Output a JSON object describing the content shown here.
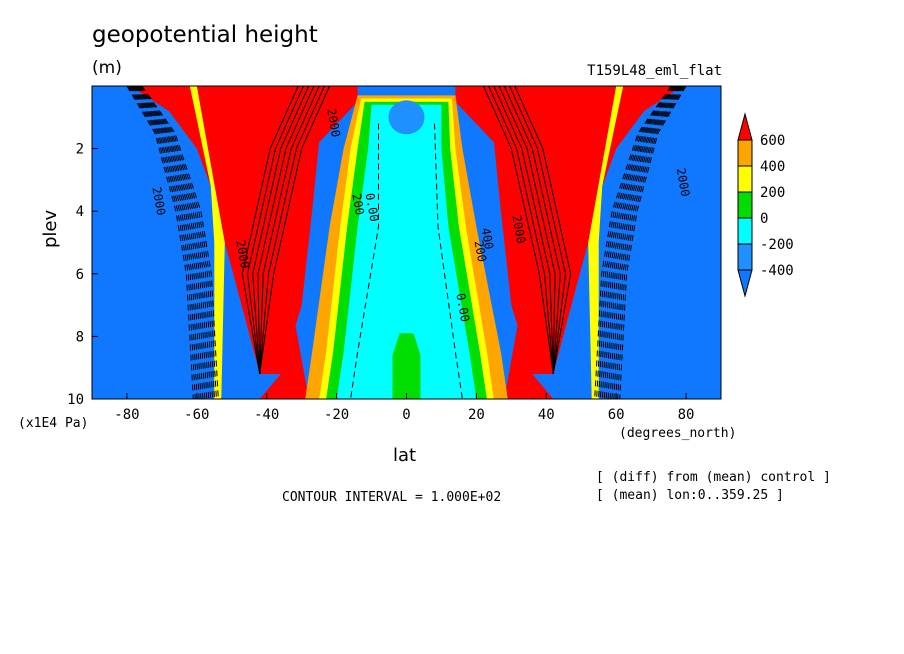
{
  "header": {
    "title": "geopotential height",
    "units": "(m)",
    "run_label": "T159L48_eml_flat"
  },
  "footer": {
    "contour_interval": "CONTOUR INTERVAL = 1.000E+02",
    "diff_note": "[ (diff) from (mean) control ]",
    "mean_note": "[ (mean) lon:0..359.25 ]"
  },
  "colors": {
    "level_lt_-400": "#0f78ff",
    "level_-400_-200": "#1e90ff",
    "level_-200_0": "#00ffff",
    "level_0_200": "#00dd00",
    "level_200_400": "#ffff00",
    "level_400_600": "#ffa500",
    "level_gt_600": "#ff0000"
  },
  "chart_data": {
    "type": "heatmap",
    "title": "geopotential height",
    "units": "(m)",
    "xlabel": "lat",
    "xunit": "(degrees_north)",
    "ylabel": "plev",
    "yunit": "(x1E4 Pa)",
    "xlim": [
      -90,
      90
    ],
    "ylim": [
      10,
      0
    ],
    "x_ticks": [
      -80,
      -60,
      -40,
      -20,
      0,
      20,
      40,
      60,
      80
    ],
    "x_tick_labels": [
      "-80",
      "-60",
      "-40",
      "-20",
      "0",
      "20",
      "40",
      "60",
      "80"
    ],
    "y_ticks": [
      2,
      4,
      6,
      8,
      10
    ],
    "y_tick_labels": [
      "2",
      "4",
      "6",
      "8",
      "10"
    ],
    "colorbar": {
      "ticks": [
        600,
        400,
        200,
        0,
        -200,
        -400
      ],
      "tick_labels": [
        "600",
        "400",
        "200",
        "0",
        "-200",
        "-400"
      ]
    },
    "contour_labels": [
      {
        "text": "0.00",
        "lat": -11,
        "plev": 3.9
      },
      {
        "text": "0.00",
        "lat": 15,
        "plev": 7.1
      },
      {
        "text": "200",
        "lat": -15,
        "plev": 3.8
      },
      {
        "text": "200",
        "lat": 20,
        "plev": 5.3
      },
      {
        "text": "400",
        "lat": 22,
        "plev": 4.9
      },
      {
        "text": "2000",
        "lat": 31,
        "plev": 4.6
      },
      {
        "text": "2000",
        "lat": -48,
        "plev": 5.4
      },
      {
        "text": "2000",
        "lat": 78,
        "plev": 3.1
      },
      {
        "text": "2000",
        "lat": -72,
        "plev": 3.7
      },
      {
        "text": "2000",
        "lat": -22,
        "plev": 1.2
      }
    ],
    "contour_interval": 100
  }
}
